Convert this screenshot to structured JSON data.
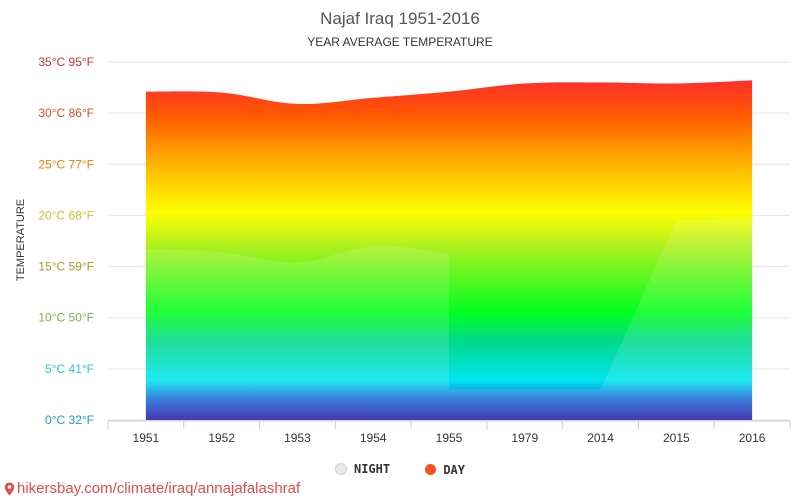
{
  "chart_data": {
    "type": "area",
    "title": "Najaf Iraq 1951-2016",
    "subtitle": "YEAR AVERAGE TEMPERATURE",
    "ylabel": "TEMPERATURE",
    "categories": [
      "1951",
      "1952",
      "1953",
      "1954",
      "1955",
      "1979",
      "2014",
      "2015",
      "2016"
    ],
    "y_ticks": [
      {
        "value": 0,
        "label": "0°C 32°F",
        "color": "#2196c9"
      },
      {
        "value": 5,
        "label": "5°C 41°F",
        "color": "#26c6da"
      },
      {
        "value": 10,
        "label": "10°C 50°F",
        "color": "#7cb342"
      },
      {
        "value": 15,
        "label": "15°C 59°F",
        "color": "#9e9d24"
      },
      {
        "value": 20,
        "label": "20°C 68°F",
        "color": "#c0ca33"
      },
      {
        "value": 25,
        "label": "25°C 77°F",
        "color": "#f57c00"
      },
      {
        "value": 30,
        "label": "30°C 86°F",
        "color": "#e64a19"
      },
      {
        "value": 35,
        "label": "35°C 95°F",
        "color": "#d32f2f"
      }
    ],
    "ylim": [
      0,
      35
    ],
    "series": [
      {
        "name": "DAY",
        "values": [
          32.1,
          32.0,
          30.9,
          31.5,
          32.1,
          32.9,
          33.0,
          32.9,
          33.2
        ]
      },
      {
        "name": "NIGHT",
        "values": [
          16.7,
          16.4,
          15.4,
          17.0,
          16.3,
          3.0,
          3.0,
          19.5,
          19.7
        ]
      }
    ],
    "legend": [
      {
        "label": "NIGHT",
        "color": "#e8e8e8"
      },
      {
        "label": "DAY",
        "color": "#f4511e"
      }
    ],
    "legend_position": "bottom",
    "grid": true
  },
  "footer": {
    "text": "hikersbay.com/climate/iraq/annajafalashraf",
    "icon": "location-pin-icon"
  }
}
